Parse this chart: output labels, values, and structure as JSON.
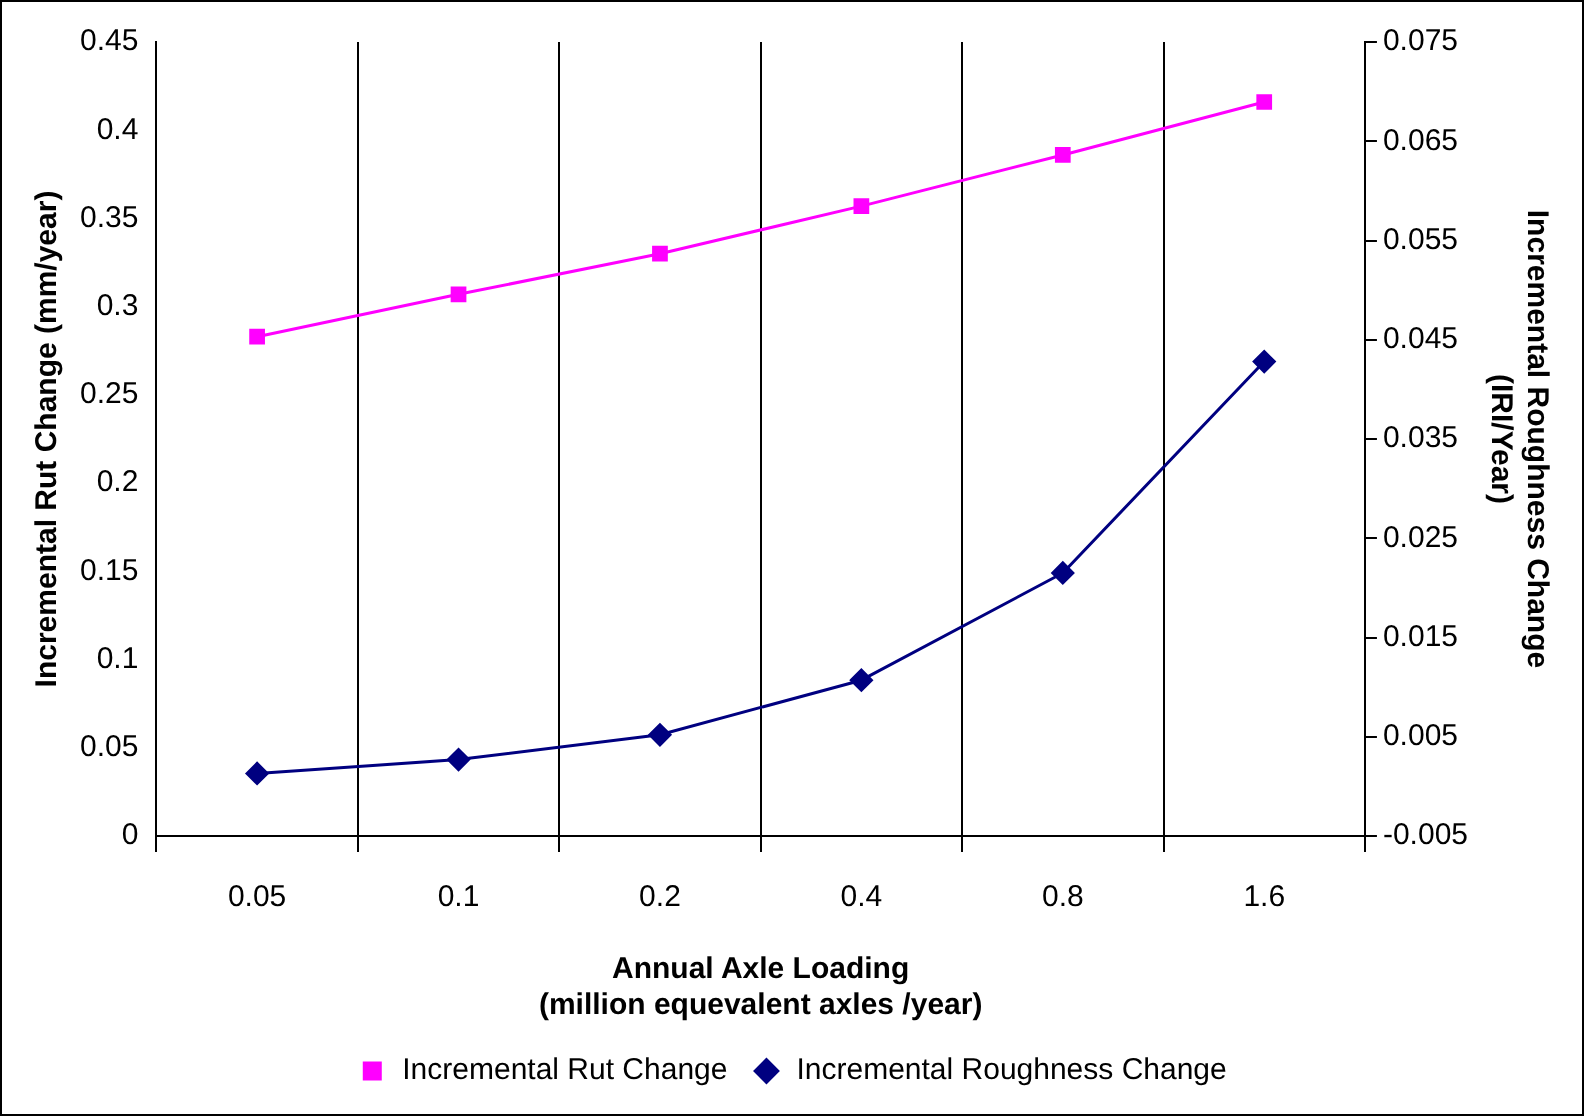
{
  "chart_data": {
    "type": "line",
    "xlabel": "Annual Axle Loading\n(million equevalent axles /year)",
    "ylabel": "Incremental Rut Change (mm/year)",
    "y2label": "Incremental Roughness Change\n(IRI/Year)",
    "categories": [
      "0.05",
      "0.1",
      "0.2",
      "0.4",
      "0.8",
      "1.6"
    ],
    "series": [
      {
        "name": "Incremental Rut Change",
        "color": "#ff00ff",
        "marker": "square",
        "values": [
          0.283,
          0.307,
          0.33,
          0.357,
          0.386,
          0.416
        ]
      },
      {
        "name": "Incremental Roughness Change",
        "color": "#000080",
        "marker": "diamond",
        "axis": "y2",
        "values": [
          0.0013,
          0.0027,
          0.0052,
          0.0107,
          0.0215,
          0.0428
        ]
      }
    ],
    "ylim": [
      0,
      0.45
    ],
    "yticks": [
      0,
      0.05,
      0.1,
      0.15,
      0.2,
      0.25,
      0.3,
      0.35,
      0.4,
      0.45
    ],
    "y2lim": [
      -0.005,
      0.075
    ],
    "y2ticks": [
      -0.005,
      0.005,
      0.015,
      0.025,
      0.035,
      0.045,
      0.055,
      0.065,
      0.075
    ],
    "grid": "x",
    "legend": "bottom",
    "line_style": "solid"
  }
}
